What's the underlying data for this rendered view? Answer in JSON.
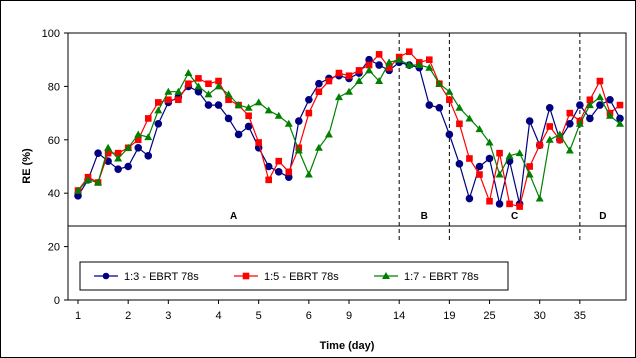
{
  "chart_data": {
    "type": "line",
    "xlabel": "Time (day)",
    "ylabel": "RE (%)",
    "ylim": [
      0,
      100
    ],
    "yticks": [
      "0",
      "20",
      "40",
      "60",
      "80",
      "100"
    ],
    "xtick_labels": [
      "1",
      "2",
      "3",
      "4",
      "5",
      "6",
      "9",
      "14",
      "19",
      "25",
      "30",
      "35"
    ],
    "n_points": 44,
    "phase_labels": [
      "A",
      "B",
      "C",
      "D"
    ],
    "phase_boundaries_after_tick": [
      8,
      9,
      11
    ],
    "legend_position": "bottom-left",
    "grid": false,
    "series": [
      {
        "name": "1:3 - EBRT 78s",
        "color": "#000080",
        "marker": "circle",
        "values": [
          39,
          45,
          55,
          52,
          49,
          50,
          57,
          54,
          66,
          74,
          76,
          80,
          78,
          73,
          73,
          68,
          62,
          65,
          57,
          50,
          48,
          46,
          67,
          75,
          81,
          83,
          84,
          83,
          85,
          90,
          88,
          86,
          89,
          88,
          87,
          73,
          72,
          62,
          51,
          38,
          50,
          53,
          36,
          52
        ]
      },
      {
        "name": "1:5 - EBRT 78s",
        "color": "#ff0000",
        "marker": "square",
        "values": [
          41,
          46,
          44,
          55,
          55,
          57,
          60,
          68,
          74,
          75,
          75,
          81,
          83,
          81,
          82,
          75,
          73,
          69,
          59,
          45,
          52,
          48,
          57,
          70,
          78,
          82,
          85,
          84,
          86,
          88,
          92,
          87,
          91,
          93,
          89,
          90,
          81,
          75,
          66,
          53,
          47,
          37,
          55,
          36
        ]
      },
      {
        "name": "1:7 - EBRT 78s",
        "color": "#008000",
        "marker": "triangle",
        "values": [
          41,
          45,
          44,
          57,
          53,
          57,
          62,
          61,
          71,
          78,
          78,
          85,
          80,
          77,
          80,
          77,
          73,
          72,
          74,
          71,
          69,
          66,
          56,
          47,
          57,
          62,
          76,
          78,
          82,
          86,
          82,
          89,
          90,
          88,
          88,
          87,
          81,
          78,
          72,
          68,
          64,
          59,
          47,
          54
        ]
      }
    ],
    "extra_tail": {
      "note_values_continue": true,
      "s1": [
        36,
        67,
        58,
        72,
        60,
        66,
        73,
        68,
        73,
        75,
        68
      ],
      "s2": [
        35,
        50,
        58,
        65,
        60,
        70,
        67,
        75,
        82,
        70,
        73
      ],
      "s3": [
        55,
        47,
        38,
        60,
        62,
        56,
        66,
        73,
        76,
        69,
        66
      ]
    }
  }
}
